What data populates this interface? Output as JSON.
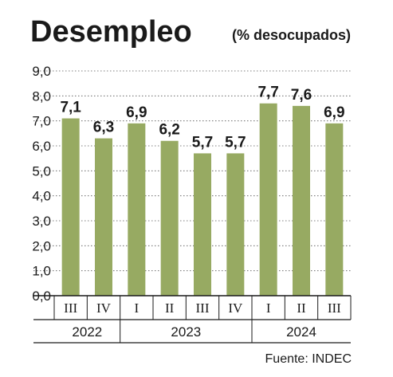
{
  "colors": {
    "bar": "#97aa62",
    "grid": "#555555",
    "text": "#1a1a1a"
  },
  "chart_data": {
    "type": "bar",
    "title": "Desempleo",
    "subtitle": "(% desocupados)",
    "source": "Fuente: INDEC",
    "categories": [
      "III",
      "IV",
      "I",
      "II",
      "III",
      "IV",
      "I",
      "II",
      "III"
    ],
    "values": [
      7.1,
      6.3,
      6.9,
      6.2,
      5.7,
      5.7,
      7.7,
      7.6,
      6.9
    ],
    "value_labels": [
      "7,1",
      "6,3",
      "6,9",
      "6,2",
      "5,7",
      "5,7",
      "7,7",
      "7,6",
      "6,9"
    ],
    "groups": [
      {
        "label": "2022",
        "count": 2
      },
      {
        "label": "2023",
        "count": 4
      },
      {
        "label": "2024",
        "count": 3
      }
    ],
    "ylim": [
      0,
      9
    ],
    "yticks": [
      0,
      1,
      2,
      3,
      4,
      5,
      6,
      7,
      8,
      9
    ],
    "ytick_labels": [
      "0,0",
      "1,0",
      "2,0",
      "3,0",
      "4,0",
      "5,0",
      "6,0",
      "7,0",
      "8,0",
      "9,0"
    ],
    "grid": true,
    "legend": "none"
  }
}
